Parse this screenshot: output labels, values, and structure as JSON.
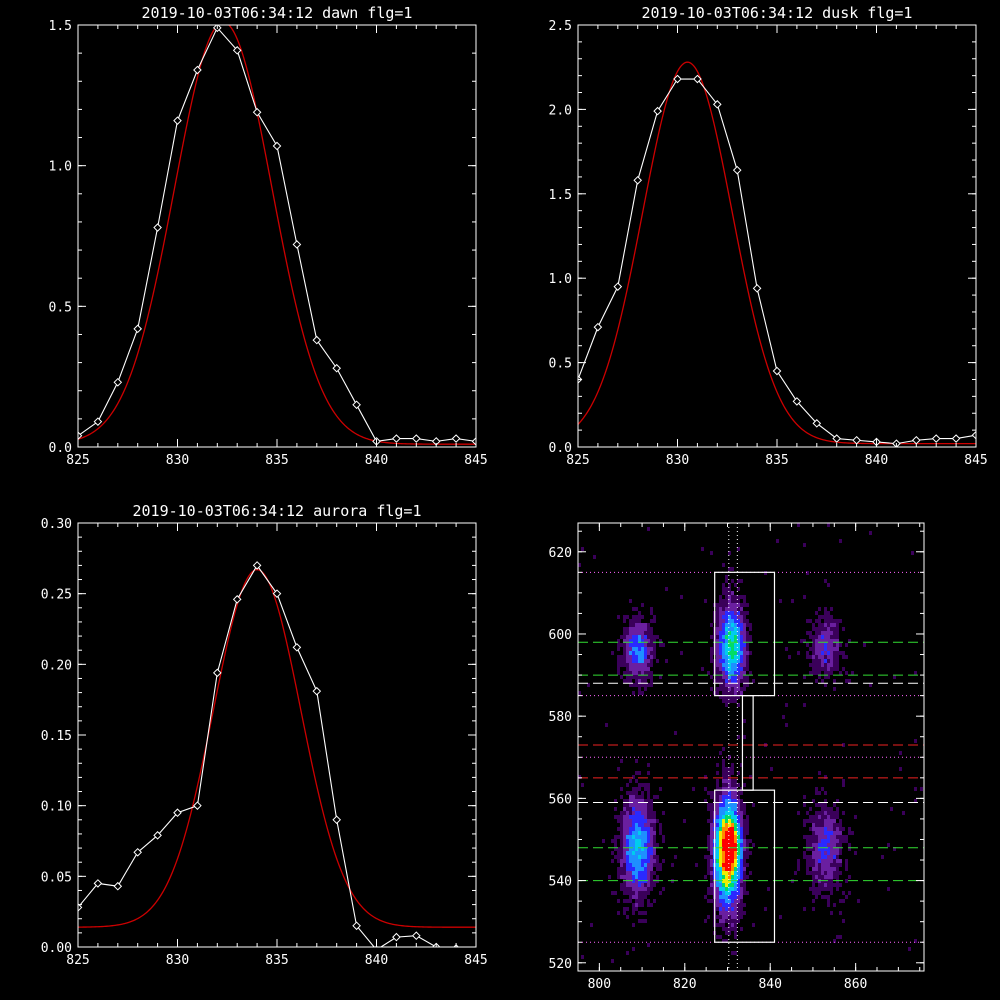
{
  "chart_data": [
    {
      "type": "line",
      "title": "2019-10-03T06:34:12 dawn flg=1",
      "xlim": [
        825,
        845
      ],
      "ylim": [
        0,
        1.5
      ],
      "xticks": [
        "825",
        "830",
        "835",
        "840",
        "845"
      ],
      "yticks": [
        "0.0",
        "0.5",
        "1.0",
        "1.5"
      ],
      "series": [
        {
          "role": "data",
          "color": "#ffffff",
          "marker": "diamond",
          "x": [
            825,
            826,
            827,
            828,
            829,
            830,
            831,
            832,
            833,
            834,
            835,
            836,
            837,
            838,
            839,
            840,
            841,
            842,
            843,
            844,
            845
          ],
          "y": [
            0.04,
            0.09,
            0.23,
            0.42,
            0.78,
            1.16,
            1.34,
            1.49,
            1.41,
            1.19,
            1.07,
            0.72,
            0.38,
            0.28,
            0.15,
            0.02,
            0.03,
            0.03,
            0.02,
            0.03,
            0.02
          ]
        },
        {
          "role": "fit",
          "color": "#cc0000",
          "gauss": {
            "a": 1.5,
            "mu": 832.3,
            "sigma": 2.45,
            "c": 0.01
          }
        }
      ]
    },
    {
      "type": "line",
      "title": "2019-10-03T06:34:12 dusk flg=1",
      "xlim": [
        825,
        845
      ],
      "ylim": [
        0,
        2.5
      ],
      "xticks": [
        "825",
        "830",
        "835",
        "840",
        "845"
      ],
      "yticks": [
        "0.0",
        "0.5",
        "1.0",
        "1.5",
        "2.0",
        "2.5"
      ],
      "series": [
        {
          "role": "data",
          "color": "#ffffff",
          "marker": "diamond",
          "x": [
            825,
            826,
            827,
            828,
            829,
            830,
            831,
            832,
            833,
            834,
            835,
            836,
            837,
            838,
            839,
            840,
            841,
            842,
            843,
            844,
            845
          ],
          "y": [
            0.4,
            0.71,
            0.95,
            1.58,
            1.99,
            2.18,
            2.18,
            2.03,
            1.64,
            0.94,
            0.45,
            0.27,
            0.14,
            0.05,
            0.04,
            0.03,
            0.02,
            0.04,
            0.05,
            0.05,
            0.07
          ]
        },
        {
          "role": "fit",
          "color": "#cc0000",
          "gauss": {
            "a": 2.26,
            "mu": 830.5,
            "sigma": 2.25,
            "c": 0.02
          }
        }
      ]
    },
    {
      "type": "line",
      "title": "2019-10-03T06:34:12 aurora flg=1",
      "xlim": [
        825,
        845
      ],
      "ylim": [
        0,
        0.3
      ],
      "xticks": [
        "825",
        "830",
        "835",
        "840",
        "845"
      ],
      "yticks": [
        "0.00",
        "0.05",
        "0.10",
        "0.15",
        "0.20",
        "0.25",
        "0.30"
      ],
      "series": [
        {
          "role": "data",
          "color": "#ffffff",
          "marker": "diamond",
          "x": [
            825,
            826,
            827,
            828,
            829,
            830,
            831,
            832,
            833,
            834,
            835,
            836,
            837,
            838,
            839,
            840,
            841,
            842,
            843,
            844,
            845
          ],
          "y": [
            0.028,
            0.045,
            0.043,
            0.067,
            0.079,
            0.095,
            0.1,
            0.194,
            0.246,
            0.27,
            0.25,
            0.212,
            0.181,
            0.09,
            0.015,
            -0.002,
            0.007,
            0.008,
            0.0,
            -0.001,
            -0.003
          ]
        },
        {
          "role": "fit",
          "color": "#cc0000",
          "gauss": {
            "a": 0.253,
            "mu": 834.0,
            "sigma": 2.2,
            "c": 0.014
          }
        }
      ]
    },
    {
      "type": "heatmap",
      "title": "",
      "xlim": [
        795,
        876
      ],
      "ylim": [
        518,
        627
      ],
      "xticks": [
        "800",
        "820",
        "840",
        "860"
      ],
      "yticks": [
        "520",
        "540",
        "560",
        "580",
        "600",
        "620"
      ],
      "blobs": [
        {
          "x": 830,
          "y": 547,
          "sx": 2.2,
          "sy": 9,
          "amp": 0.95
        },
        {
          "x": 831,
          "y": 549,
          "sx": 1.2,
          "sy": 3,
          "amp": 0.35
        },
        {
          "x": 831,
          "y": 597,
          "sx": 2.2,
          "sy": 7,
          "amp": 0.62
        },
        {
          "x": 809,
          "y": 548,
          "sx": 2.6,
          "sy": 8,
          "amp": 0.5
        },
        {
          "x": 809,
          "y": 596,
          "sx": 2.3,
          "sy": 5,
          "amp": 0.4
        },
        {
          "x": 853,
          "y": 548,
          "sx": 2.8,
          "sy": 7,
          "amp": 0.3
        },
        {
          "x": 853,
          "y": 597,
          "sx": 2.5,
          "sy": 5,
          "amp": 0.28
        }
      ],
      "boxes": [
        {
          "x0": 827,
          "x1": 841,
          "y0": 525,
          "y1": 562,
          "color": "#ffffff"
        },
        {
          "x0": 827,
          "x1": 841,
          "y0": 585,
          "y1": 615,
          "color": "#ffffff"
        },
        {
          "x0": 833.5,
          "x1": 836,
          "y0": 562,
          "y1": 585,
          "color": "#ffffff"
        }
      ],
      "hlines": [
        {
          "y": 615,
          "color": "#ff66ff",
          "style": "dotted"
        },
        {
          "y": 598,
          "color": "#33dd33",
          "style": "dashed"
        },
        {
          "y": 590,
          "color": "#33dd33",
          "style": "dashed"
        },
        {
          "y": 588,
          "color": "#ffffff",
          "style": "dashed"
        },
        {
          "y": 585,
          "color": "#ff66ff",
          "style": "dotted"
        },
        {
          "y": 573,
          "color": "#ee2222",
          "style": "dashed"
        },
        {
          "y": 570,
          "color": "#ff66ff",
          "style": "dotted"
        },
        {
          "y": 565,
          "color": "#ee2222",
          "style": "dashed"
        },
        {
          "y": 559,
          "color": "#ffffff",
          "style": "dashed"
        },
        {
          "y": 548,
          "color": "#33dd33",
          "style": "dashed"
        },
        {
          "y": 540,
          "color": "#33dd33",
          "style": "dashed"
        },
        {
          "y": 525,
          "color": "#ff66ff",
          "style": "dotted"
        }
      ],
      "vlines": [
        {
          "x": 830.3,
          "color": "#ffffff",
          "style": "dotted"
        },
        {
          "x": 832.3,
          "color": "#ffffff",
          "style": "dotted"
        }
      ],
      "colormap": [
        "#000000",
        "#3a005a",
        "#6a1fa0",
        "#2a2aff",
        "#1e90ff",
        "#00ccee",
        "#00dd66",
        "#eeee00",
        "#ff8800",
        "#ff0000"
      ]
    }
  ]
}
